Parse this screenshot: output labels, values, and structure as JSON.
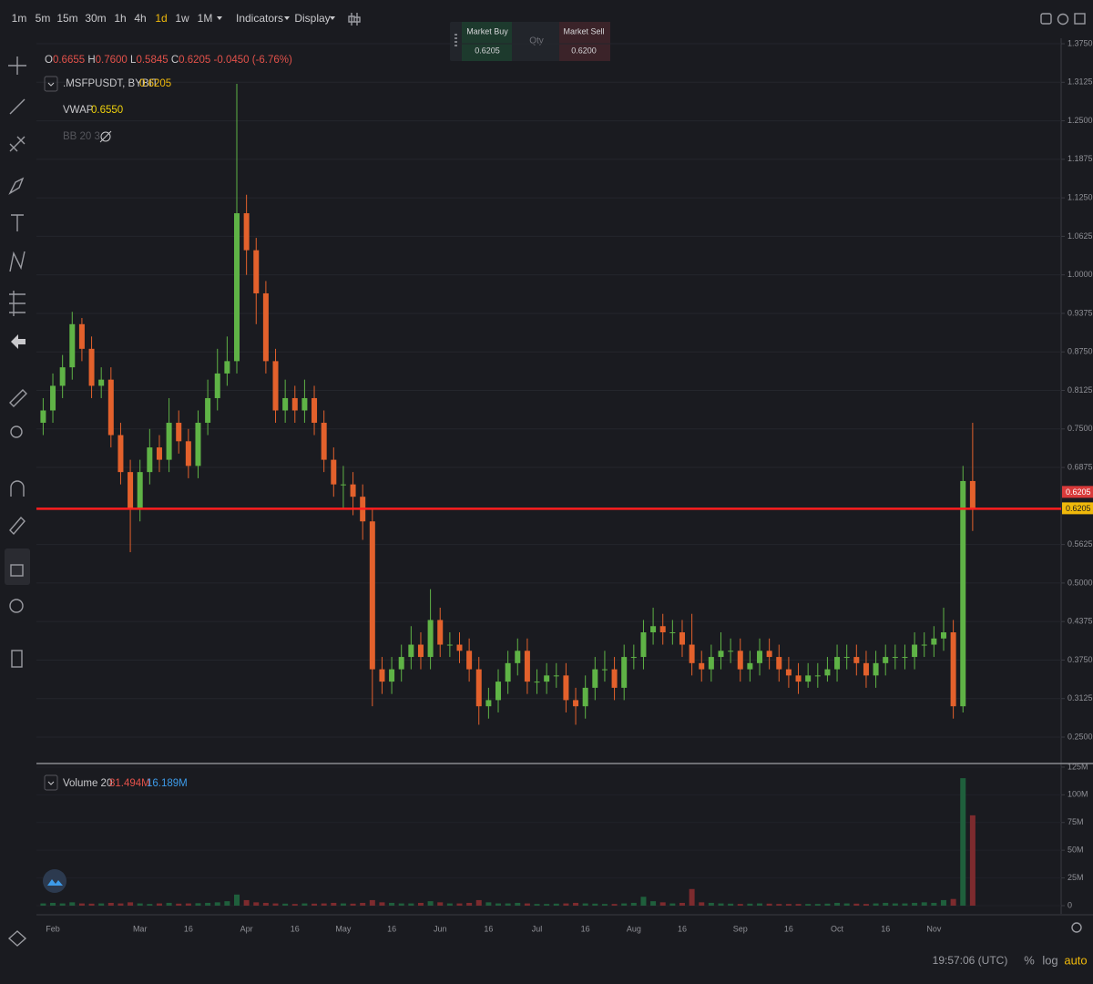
{
  "toolbar": {
    "timeframes": [
      "1m",
      "5m",
      "15m",
      "30m",
      "1h",
      "4h",
      "1d",
      "1w",
      "1M"
    ],
    "active": 6,
    "indicators": "Indicators",
    "display": "Display"
  },
  "order_panel": {
    "buy_label": "Market Buy",
    "buy_price": "0.6205",
    "qty_label": "Qty",
    "sell_label": "Market Sell",
    "sell_price": "0.6200"
  },
  "legend": {
    "ohlc": [
      {
        "key": "O",
        "value": "0.6655"
      },
      {
        "key": "H",
        "value": "0.7600"
      },
      {
        "key": "L",
        "value": "0.5845"
      },
      {
        "key": "C",
        "value": "0.6205"
      }
    ],
    "change": "-0.0450 (-6.76%)",
    "symbol": ".MSFPUSDT, BYBIT",
    "symbol_price": "0.6205",
    "vwap_label": "VWAP",
    "vwap_value": "0.6550",
    "bb_label": "BB 20 3",
    "volume_label": "Volume 20",
    "volume_value": "81.494M",
    "volume_ma": "16.189M"
  },
  "status_bar": {
    "time": "19:57:06 (UTC)",
    "percent": "%",
    "log": "log",
    "auto": "auto"
  },
  "chart_data": {
    "type": "candlestick",
    "categories": [
      null,
      "Feb",
      null,
      null,
      null,
      null,
      null,
      null,
      null,
      null,
      "Mar",
      null,
      null,
      null,
      null,
      "16",
      null,
      null,
      null,
      null,
      null,
      "Apr",
      null,
      null,
      null,
      null,
      "16",
      null,
      null,
      null,
      null,
      "May",
      null,
      null,
      null,
      null,
      "16",
      null,
      null,
      null,
      null,
      "Jun",
      null,
      null,
      null,
      null,
      "16",
      null,
      null,
      null,
      null,
      "Jul",
      null,
      null,
      null,
      null,
      "16",
      null,
      null,
      null,
      null,
      "Aug",
      null,
      null,
      null,
      null,
      "16",
      null,
      null,
      null,
      null,
      null,
      "Sep",
      null,
      null,
      null,
      null,
      "16",
      null,
      null,
      null,
      null,
      "Oct",
      null,
      null,
      null,
      null,
      "16",
      null,
      null,
      null,
      null,
      "Nov",
      null,
      null,
      null,
      null
    ],
    "open": [
      0.76,
      0.78,
      0.82,
      0.85,
      0.92,
      0.88,
      0.82,
      0.83,
      0.74,
      0.68,
      0.62,
      0.68,
      0.72,
      0.7,
      0.76,
      0.73,
      0.69,
      0.76,
      0.8,
      0.84,
      0.86,
      1.1,
      1.04,
      0.97,
      0.86,
      0.78,
      0.8,
      0.78,
      0.8,
      0.76,
      0.7,
      0.66,
      0.66,
      0.64,
      0.6,
      0.36,
      0.34,
      0.36,
      0.38,
      0.4,
      0.38,
      0.44,
      0.4,
      0.4,
      0.39,
      0.36,
      0.3,
      0.31,
      0.34,
      0.37,
      0.39,
      0.34,
      0.34,
      0.35,
      0.35,
      0.31,
      0.3,
      0.33,
      0.36,
      0.36,
      0.33,
      0.38,
      0.38,
      0.42,
      0.43,
      0.42,
      0.42,
      0.4,
      0.37,
      0.36,
      0.38,
      0.39,
      0.39,
      0.36,
      0.37,
      0.39,
      0.38,
      0.36,
      0.35,
      0.34,
      0.35,
      0.35,
      0.36,
      0.38,
      0.38,
      0.37,
      0.35,
      0.37,
      0.38,
      0.38,
      0.38,
      0.4,
      0.4,
      0.41,
      0.42,
      0.3,
      0.6655
    ],
    "high": [
      0.8,
      0.84,
      0.87,
      0.94,
      0.93,
      0.9,
      0.85,
      0.85,
      0.76,
      0.7,
      0.7,
      0.75,
      0.74,
      0.8,
      0.78,
      0.75,
      0.78,
      0.83,
      0.88,
      0.9,
      1.31,
      1.13,
      1.06,
      0.99,
      0.88,
      0.83,
      0.82,
      0.83,
      0.82,
      0.78,
      0.72,
      0.69,
      0.68,
      0.66,
      0.62,
      0.38,
      0.38,
      0.4,
      0.43,
      0.42,
      0.49,
      0.46,
      0.42,
      0.42,
      0.41,
      0.38,
      0.33,
      0.36,
      0.39,
      0.41,
      0.41,
      0.36,
      0.37,
      0.37,
      0.37,
      0.33,
      0.35,
      0.38,
      0.39,
      0.38,
      0.4,
      0.4,
      0.44,
      0.46,
      0.45,
      0.44,
      0.44,
      0.45,
      0.39,
      0.4,
      0.42,
      0.41,
      0.41,
      0.39,
      0.41,
      0.41,
      0.4,
      0.38,
      0.37,
      0.37,
      0.37,
      0.38,
      0.4,
      0.4,
      0.4,
      0.39,
      0.39,
      0.4,
      0.4,
      0.4,
      0.42,
      0.42,
      0.43,
      0.46,
      0.44,
      0.69,
      0.76
    ],
    "low": [
      0.74,
      0.76,
      0.8,
      0.83,
      0.86,
      0.8,
      0.8,
      0.72,
      0.66,
      0.55,
      0.6,
      0.66,
      0.68,
      0.68,
      0.71,
      0.67,
      0.67,
      0.74,
      0.78,
      0.82,
      0.84,
      1.0,
      0.92,
      0.84,
      0.76,
      0.76,
      0.76,
      0.76,
      0.74,
      0.68,
      0.64,
      0.62,
      0.61,
      0.57,
      0.3,
      0.32,
      0.32,
      0.34,
      0.36,
      0.36,
      0.36,
      0.38,
      0.38,
      0.37,
      0.34,
      0.27,
      0.28,
      0.29,
      0.32,
      0.35,
      0.32,
      0.32,
      0.32,
      0.33,
      0.29,
      0.27,
      0.28,
      0.31,
      0.34,
      0.31,
      0.31,
      0.36,
      0.36,
      0.4,
      0.4,
      0.4,
      0.38,
      0.35,
      0.34,
      0.34,
      0.36,
      0.37,
      0.34,
      0.34,
      0.35,
      0.36,
      0.34,
      0.33,
      0.32,
      0.33,
      0.33,
      0.34,
      0.34,
      0.36,
      0.35,
      0.33,
      0.33,
      0.35,
      0.36,
      0.36,
      0.36,
      0.38,
      0.38,
      0.39,
      0.28,
      0.29,
      0.5845
    ],
    "close": [
      0.78,
      0.82,
      0.85,
      0.92,
      0.88,
      0.82,
      0.83,
      0.74,
      0.68,
      0.62,
      0.68,
      0.72,
      0.7,
      0.76,
      0.73,
      0.69,
      0.76,
      0.8,
      0.84,
      0.86,
      1.1,
      1.04,
      0.97,
      0.86,
      0.78,
      0.8,
      0.78,
      0.8,
      0.76,
      0.7,
      0.66,
      0.66,
      0.64,
      0.6,
      0.36,
      0.34,
      0.36,
      0.38,
      0.4,
      0.38,
      0.44,
      0.4,
      0.4,
      0.39,
      0.36,
      0.3,
      0.31,
      0.34,
      0.37,
      0.39,
      0.34,
      0.34,
      0.35,
      0.35,
      0.31,
      0.3,
      0.33,
      0.36,
      0.36,
      0.33,
      0.38,
      0.38,
      0.42,
      0.43,
      0.42,
      0.42,
      0.4,
      0.37,
      0.36,
      0.38,
      0.39,
      0.39,
      0.36,
      0.37,
      0.39,
      0.38,
      0.36,
      0.35,
      0.34,
      0.35,
      0.35,
      0.36,
      0.38,
      0.38,
      0.37,
      0.35,
      0.37,
      0.38,
      0.38,
      0.38,
      0.4,
      0.4,
      0.41,
      0.42,
      0.3,
      0.6655,
      0.6205
    ],
    "volume": [
      2000000,
      2500000,
      2000000,
      3000000,
      2000000,
      1800000,
      2000000,
      2500000,
      2000000,
      3000000,
      2000000,
      1500000,
      2000000,
      2500000,
      1800000,
      2000000,
      2200000,
      2500000,
      3000000,
      4000000,
      10000000,
      5000000,
      3000000,
      2500000,
      2000000,
      1800000,
      1500000,
      2000000,
      1800000,
      2000000,
      2500000,
      2000000,
      1800000,
      2500000,
      5000000,
      3000000,
      2500000,
      2000000,
      2000000,
      2500000,
      4000000,
      3000000,
      2000000,
      2000000,
      2500000,
      5000000,
      3000000,
      2000000,
      2000000,
      2500000,
      2000000,
      1500000,
      1500000,
      1800000,
      2000000,
      2500000,
      2000000,
      1800000,
      1500000,
      1500000,
      2000000,
      2500000,
      8000000,
      4000000,
      3000000,
      2000000,
      2500000,
      15000000,
      3000000,
      2500000,
      2000000,
      1800000,
      1500000,
      1800000,
      2000000,
      1800000,
      1500000,
      1500000,
      1500000,
      1500000,
      1500000,
      1800000,
      2500000,
      2000000,
      1800000,
      1500000,
      2000000,
      2500000,
      2000000,
      2000000,
      2500000,
      3000000,
      2500000,
      5000000,
      6000000,
      115000000,
      81494000
    ],
    "up_color": "#5fb346",
    "down_color": "#e3612c",
    "volume_up_color": "#1f5f3c",
    "volume_down_color": "#7d2b2e",
    "last_price": 0.6205,
    "mark_price": 0.6205,
    "price_line_color": "#ff1e1e",
    "ylim": [
      0.2086,
      1.3839
    ],
    "yticks": [
      {
        "value": 0.25,
        "label": "0.2500"
      },
      {
        "value": 0.3125,
        "label": "0.3125"
      },
      {
        "value": 0.375,
        "label": "0.3750"
      },
      {
        "value": 0.4375,
        "label": "0.4375"
      },
      {
        "value": 0.5,
        "label": "0.5000"
      },
      {
        "value": 0.5625,
        "label": "0.5625"
      },
      {
        "value": 0.6875,
        "label": "0.6875"
      },
      {
        "value": 0.75,
        "label": "0.7500"
      },
      {
        "value": 0.8125,
        "label": "0.8125"
      },
      {
        "value": 0.875,
        "label": "0.8750"
      },
      {
        "value": 0.9375,
        "label": "0.9375"
      },
      {
        "value": 1,
        "label": "1.0000"
      },
      {
        "value": 1.0625,
        "label": "1.0625"
      },
      {
        "value": 1.125,
        "label": "1.1250"
      },
      {
        "value": 1.1875,
        "label": "1.1875"
      },
      {
        "value": 1.25,
        "label": "1.2500"
      },
      {
        "value": 1.3125,
        "label": "1.3125"
      },
      {
        "value": 1.375,
        "label": "1.3750"
      }
    ],
    "y2lim": [
      -7400000,
      126600000
    ],
    "y2ticks": [
      0,
      {
        "value": 25000000,
        "label": "25M"
      },
      {
        "value": 50000000,
        "label": "50M"
      },
      {
        "value": 75000000,
        "label": "75M"
      },
      {
        "value": 100000000,
        "label": "100M"
      },
      {
        "value": 125000000,
        "label": "125M"
      }
    ],
    "grid": true
  }
}
